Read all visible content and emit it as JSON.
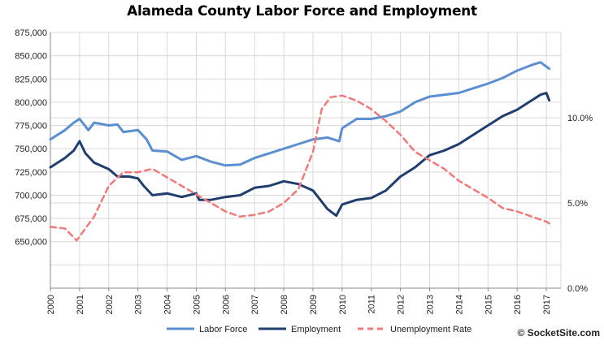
{
  "chart_data": {
    "type": "line",
    "title": "Alameda County Labor Force and Employment",
    "x_range": [
      2000,
      2017.5
    ],
    "x_ticks": [
      "2000",
      "2001",
      "2002",
      "2003",
      "2004",
      "2005",
      "2006",
      "2007",
      "2008",
      "2009",
      "2010",
      "2011",
      "2012",
      "2013",
      "2014",
      "2015",
      "2016",
      "2017"
    ],
    "y_left": {
      "range": [
        600000,
        875000
      ],
      "ticks": [
        {
          "value": 875000,
          "label": "875,000"
        },
        {
          "value": 850000,
          "label": "850,000"
        },
        {
          "value": 825000,
          "label": "825,000"
        },
        {
          "value": 800000,
          "label": "800,000"
        },
        {
          "value": 775000,
          "label": "775,000"
        },
        {
          "value": 750000,
          "label": "750,000"
        },
        {
          "value": 725000,
          "label": "725,000"
        },
        {
          "value": 700000,
          "label": "700,000"
        },
        {
          "value": 675000,
          "label": "675,000"
        },
        {
          "value": 650000,
          "label": "650,000"
        }
      ]
    },
    "y_right": {
      "range": [
        0,
        15
      ],
      "ticks": [
        {
          "value": 10,
          "label": "10.0%"
        },
        {
          "value": 5,
          "label": "5.0%"
        },
        {
          "value": 0,
          "label": "0.0%"
        }
      ]
    },
    "grid": true,
    "legend_position": "bottom",
    "series": [
      {
        "name": "Labor Force",
        "axis": "left",
        "color": "#5b8fd1",
        "style": "solid",
        "points": [
          [
            2000.0,
            760000
          ],
          [
            2000.5,
            770000
          ],
          [
            2000.8,
            778000
          ],
          [
            2001.0,
            782000
          ],
          [
            2001.3,
            770000
          ],
          [
            2001.5,
            778000
          ],
          [
            2002.0,
            775000
          ],
          [
            2002.3,
            776000
          ],
          [
            2002.5,
            768000
          ],
          [
            2003.0,
            770000
          ],
          [
            2003.3,
            760000
          ],
          [
            2003.5,
            748000
          ],
          [
            2004.0,
            747000
          ],
          [
            2004.5,
            738000
          ],
          [
            2005.0,
            742000
          ],
          [
            2005.5,
            736000
          ],
          [
            2006.0,
            732000
          ],
          [
            2006.5,
            733000
          ],
          [
            2007.0,
            740000
          ],
          [
            2007.5,
            745000
          ],
          [
            2008.0,
            750000
          ],
          [
            2008.5,
            755000
          ],
          [
            2009.0,
            760000
          ],
          [
            2009.5,
            762000
          ],
          [
            2009.9,
            758000
          ],
          [
            2010.0,
            772000
          ],
          [
            2010.5,
            782000
          ],
          [
            2011.0,
            782000
          ],
          [
            2011.5,
            785000
          ],
          [
            2012.0,
            790000
          ],
          [
            2012.5,
            800000
          ],
          [
            2013.0,
            806000
          ],
          [
            2013.5,
            808000
          ],
          [
            2014.0,
            810000
          ],
          [
            2014.5,
            815000
          ],
          [
            2015.0,
            820000
          ],
          [
            2015.5,
            826000
          ],
          [
            2016.0,
            834000
          ],
          [
            2016.5,
            840000
          ],
          [
            2016.8,
            843000
          ],
          [
            2017.1,
            836000
          ]
        ]
      },
      {
        "name": "Employment",
        "axis": "left",
        "color": "#1f3e6e",
        "style": "solid",
        "points": [
          [
            2000.0,
            730000
          ],
          [
            2000.5,
            740000
          ],
          [
            2000.8,
            748000
          ],
          [
            2001.0,
            758000
          ],
          [
            2001.2,
            745000
          ],
          [
            2001.5,
            735000
          ],
          [
            2002.0,
            728000
          ],
          [
            2002.3,
            720000
          ],
          [
            2002.7,
            720000
          ],
          [
            2003.0,
            718000
          ],
          [
            2003.2,
            710000
          ],
          [
            2003.5,
            700000
          ],
          [
            2004.0,
            702000
          ],
          [
            2004.5,
            698000
          ],
          [
            2005.0,
            702000
          ],
          [
            2005.1,
            695000
          ],
          [
            2005.5,
            695000
          ],
          [
            2006.0,
            698000
          ],
          [
            2006.5,
            700000
          ],
          [
            2007.0,
            708000
          ],
          [
            2007.5,
            710000
          ],
          [
            2008.0,
            715000
          ],
          [
            2008.5,
            712000
          ],
          [
            2009.0,
            705000
          ],
          [
            2009.5,
            685000
          ],
          [
            2009.8,
            678000
          ],
          [
            2010.0,
            690000
          ],
          [
            2010.5,
            695000
          ],
          [
            2011.0,
            697000
          ],
          [
            2011.5,
            705000
          ],
          [
            2012.0,
            720000
          ],
          [
            2012.5,
            730000
          ],
          [
            2013.0,
            743000
          ],
          [
            2013.5,
            748000
          ],
          [
            2014.0,
            755000
          ],
          [
            2014.5,
            765000
          ],
          [
            2015.0,
            775000
          ],
          [
            2015.5,
            785000
          ],
          [
            2016.0,
            792000
          ],
          [
            2016.5,
            802000
          ],
          [
            2016.8,
            808000
          ],
          [
            2017.0,
            810000
          ],
          [
            2017.1,
            802000
          ]
        ]
      },
      {
        "name": "Unemployment Rate",
        "axis": "right",
        "color": "#f07a7a",
        "style": "dashed",
        "points": [
          [
            2000.0,
            3.6
          ],
          [
            2000.5,
            3.5
          ],
          [
            2000.9,
            2.8
          ],
          [
            2001.2,
            3.5
          ],
          [
            2001.5,
            4.2
          ],
          [
            2002.0,
            6.0
          ],
          [
            2002.5,
            6.8
          ],
          [
            2003.0,
            6.8
          ],
          [
            2003.5,
            7.0
          ],
          [
            2004.0,
            6.5
          ],
          [
            2004.5,
            6.0
          ],
          [
            2005.0,
            5.5
          ],
          [
            2005.5,
            5.0
          ],
          [
            2006.0,
            4.5
          ],
          [
            2006.5,
            4.2
          ],
          [
            2007.0,
            4.3
          ],
          [
            2007.5,
            4.5
          ],
          [
            2008.0,
            5.0
          ],
          [
            2008.5,
            5.8
          ],
          [
            2009.0,
            8.0
          ],
          [
            2009.3,
            10.5
          ],
          [
            2009.6,
            11.2
          ],
          [
            2010.0,
            11.3
          ],
          [
            2010.5,
            11.0
          ],
          [
            2011.0,
            10.5
          ],
          [
            2011.5,
            9.8
          ],
          [
            2012.0,
            9.0
          ],
          [
            2012.5,
            8.0
          ],
          [
            2013.0,
            7.5
          ],
          [
            2013.5,
            7.0
          ],
          [
            2014.0,
            6.3
          ],
          [
            2014.5,
            5.8
          ],
          [
            2015.0,
            5.3
          ],
          [
            2015.5,
            4.7
          ],
          [
            2016.0,
            4.5
          ],
          [
            2016.5,
            4.2
          ],
          [
            2017.0,
            3.9
          ],
          [
            2017.1,
            3.8
          ]
        ]
      }
    ],
    "legend": [
      "Labor Force",
      "Employment",
      "Unemployment Rate"
    ],
    "watermark": "© SocketSite.com"
  }
}
